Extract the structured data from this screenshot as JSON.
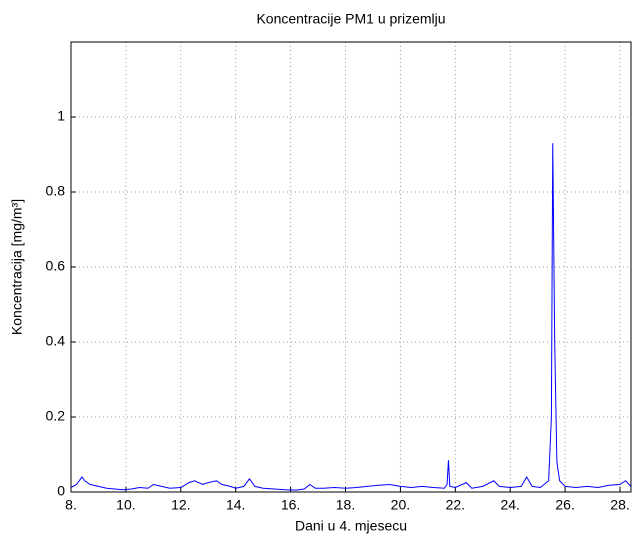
{
  "chart_data": {
    "type": "line",
    "title": "Koncentracije PM1 u prizemlju",
    "x_label": "Dani u 4. mjesecu",
    "y_label": "Koncentracija [mg/m³]",
    "x": [
      8.0,
      8.2,
      8.4,
      8.5,
      8.7,
      9.0,
      9.3,
      9.6,
      9.9,
      10.2,
      10.5,
      10.8,
      11.0,
      11.3,
      11.6,
      12.0,
      12.3,
      12.5,
      12.8,
      13.0,
      13.3,
      13.5,
      13.8,
      14.0,
      14.3,
      14.5,
      14.7,
      15.0,
      15.4,
      15.8,
      16.2,
      16.5,
      16.7,
      16.9,
      17.2,
      17.6,
      18.0,
      18.4,
      18.8,
      19.2,
      19.6,
      20.0,
      20.4,
      20.8,
      21.2,
      21.6,
      21.7,
      21.75,
      21.8,
      22.0,
      22.4,
      22.6,
      23.0,
      23.4,
      23.6,
      24.0,
      24.4,
      24.6,
      24.8,
      25.1,
      25.4,
      25.5,
      25.55,
      25.62,
      25.7,
      25.8,
      26.0,
      26.4,
      26.8,
      27.2,
      27.6,
      28.0,
      28.2,
      28.4
    ],
    "series": [
      {
        "color": "#0000ff",
        "values": [
          0.012,
          0.02,
          0.04,
          0.03,
          0.02,
          0.015,
          0.01,
          0.008,
          0.006,
          0.008,
          0.012,
          0.01,
          0.02,
          0.015,
          0.01,
          0.012,
          0.025,
          0.03,
          0.02,
          0.025,
          0.03,
          0.02,
          0.015,
          0.01,
          0.015,
          0.035,
          0.015,
          0.01,
          0.008,
          0.006,
          0.005,
          0.008,
          0.02,
          0.01,
          0.01,
          0.012,
          0.01,
          0.012,
          0.015,
          0.018,
          0.02,
          0.015,
          0.012,
          0.015,
          0.012,
          0.01,
          0.02,
          0.085,
          0.015,
          0.012,
          0.025,
          0.01,
          0.015,
          0.03,
          0.015,
          0.012,
          0.015,
          0.04,
          0.015,
          0.012,
          0.03,
          0.2,
          0.93,
          0.4,
          0.08,
          0.03,
          0.015,
          0.012,
          0.015,
          0.012,
          0.018,
          0.02,
          0.03,
          0.015
        ]
      }
    ],
    "xlim": [
      8,
      28.4
    ],
    "ylim": [
      0,
      1.2
    ],
    "xticks": [
      {
        "value": 8,
        "label": "8."
      },
      {
        "value": 10,
        "label": "10."
      },
      {
        "value": 12,
        "label": "12."
      },
      {
        "value": 14,
        "label": "14."
      },
      {
        "value": 16,
        "label": "16."
      },
      {
        "value": 18,
        "label": "18."
      },
      {
        "value": 20,
        "label": "20."
      },
      {
        "value": 22,
        "label": "22."
      },
      {
        "value": 24,
        "label": "24."
      },
      {
        "value": 26,
        "label": "26."
      },
      {
        "value": 28,
        "label": "28."
      }
    ],
    "yticks": [
      0,
      0.2,
      0.4,
      0.6,
      0.8,
      1
    ],
    "grid": true
  }
}
